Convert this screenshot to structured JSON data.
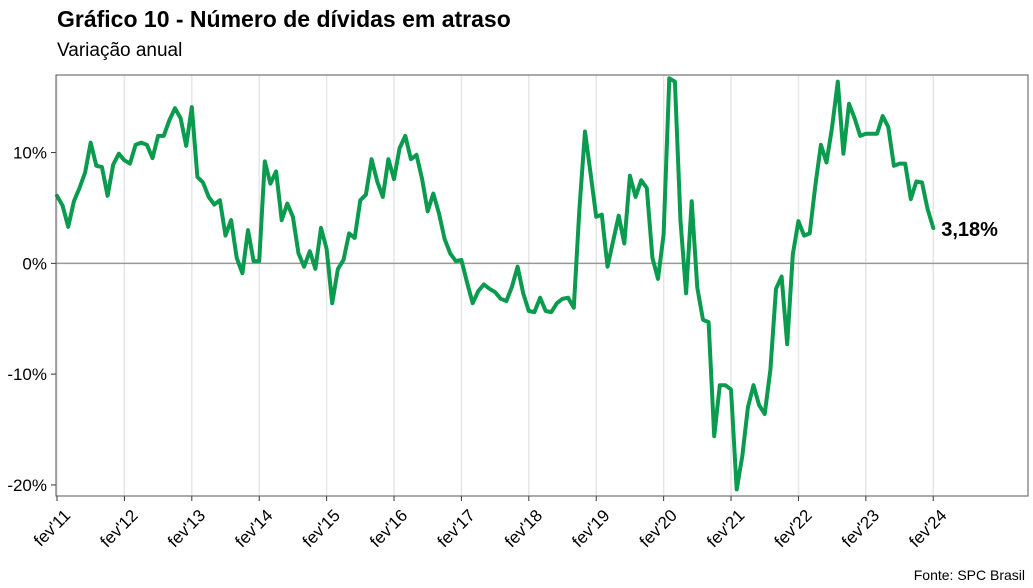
{
  "header": {
    "title": "Gráfico 10 - Número de dívidas em atraso",
    "subtitle": "Variação anual"
  },
  "footer": {
    "source": "Fonte: SPC Brasil"
  },
  "colors": {
    "line": "#0a9b4e",
    "zero_line": "#999999",
    "grid": "#e6e6e6",
    "frame": "#555555"
  },
  "chart_data": {
    "type": "line",
    "title": "Gráfico 10 - Número de dívidas em atraso",
    "subtitle": "Variação anual",
    "xlabel": "",
    "ylabel": "",
    "ylim": [
      -21,
      17
    ],
    "y_ticks": [
      -20,
      -10,
      0,
      10
    ],
    "y_tick_labels": [
      "-20%",
      "-10%",
      "0%",
      "10%"
    ],
    "x_start": "2011-02",
    "x_tick_labels": [
      "fev'11",
      "fev'12",
      "fev'13",
      "fev'14",
      "fev'15",
      "fev'16",
      "fev'17",
      "fev'18",
      "fev'19",
      "fev'20",
      "fev'21",
      "fev'22",
      "fev'23",
      "fev'24"
    ],
    "grid": "vertical",
    "zero_line": true,
    "series": [
      {
        "values": [
          6.1,
          5.2,
          3.3,
          5.6,
          6.8,
          8.2,
          10.9,
          8.8,
          8.7,
          6.1,
          8.9,
          9.9,
          9.3,
          9.0,
          10.7,
          10.9,
          10.7,
          9.5,
          11.5,
          11.5,
          12.9,
          14.0,
          13.1,
          10.6,
          14.1,
          7.8,
          7.3,
          6.0,
          5.3,
          5.7,
          2.5,
          3.9,
          0.5,
          -0.9,
          3.0,
          0.2,
          0.2,
          9.2,
          7.2,
          8.3,
          3.9,
          5.4,
          4.2,
          0.9,
          -0.3,
          1.1,
          -0.5,
          3.2,
          1.3,
          -3.6,
          -0.5,
          0.3,
          2.7,
          2.3,
          5.7,
          6.2,
          9.4,
          7.4,
          6.0,
          9.4,
          7.6,
          10.4,
          11.5,
          9.4,
          9.8,
          7.6,
          4.7,
          6.3,
          4.5,
          2.2,
          0.9,
          0.2,
          0.3,
          -1.7,
          -3.6,
          -2.5,
          -1.9,
          -2.3,
          -2.6,
          -3.2,
          -3.4,
          -2.1,
          -0.3,
          -2.7,
          -4.3,
          -4.4,
          -3.1,
          -4.3,
          -4.4,
          -3.6,
          -3.2,
          -3.1,
          -4.0,
          4.9,
          11.9,
          8.1,
          4.2,
          4.4,
          -0.3,
          2.0,
          4.3,
          1.8,
          7.9,
          6.0,
          7.5,
          6.8,
          0.5,
          -1.4,
          2.6,
          16.7,
          16.4,
          3.8,
          -2.7,
          5.6,
          -2.2,
          -5.1,
          -5.3,
          -15.6,
          -11.0,
          -11.0,
          -11.4,
          -20.4,
          -17.4,
          -13.0,
          -11.0,
          -12.8,
          -13.6,
          -9.6,
          -2.3,
          -1.2,
          -7.3,
          0.8,
          3.8,
          2.5,
          2.7,
          7.0,
          10.7,
          9.1,
          12.3,
          16.4,
          9.9,
          14.4,
          13.1,
          11.5,
          11.7,
          11.7,
          11.7,
          13.3,
          12.3,
          8.8,
          9.0,
          9.0,
          5.8,
          7.4,
          7.3,
          4.9,
          3.18
        ]
      }
    ],
    "last_value_label": "3,18%"
  }
}
